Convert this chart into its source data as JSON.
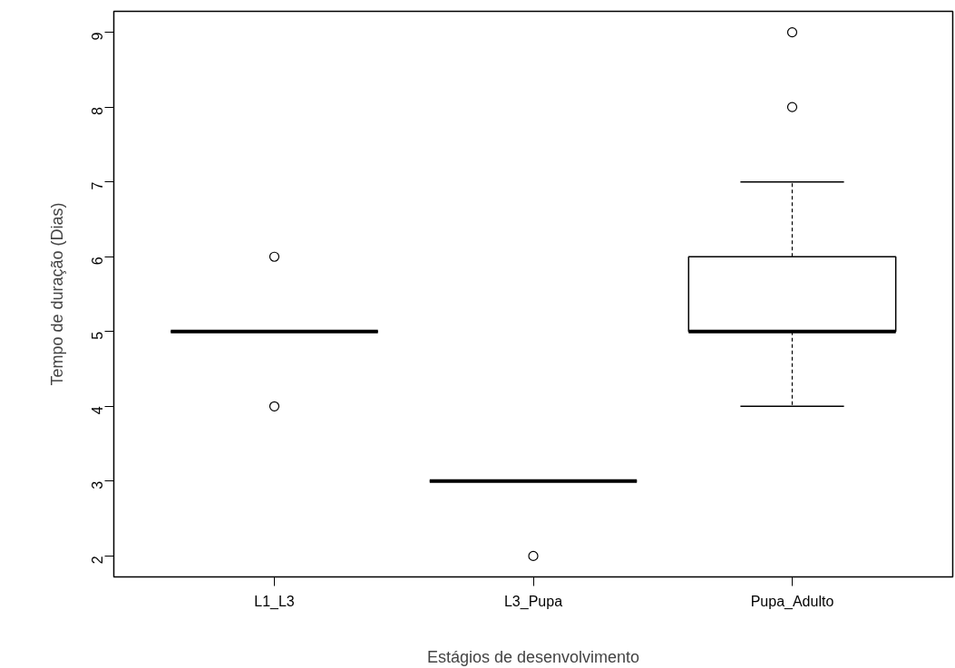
{
  "chart_data": {
    "type": "box",
    "xlabel": "Estágios de desenvolvimento",
    "ylabel": "Tempo de duração (Dias)",
    "categories": [
      "L1_L3",
      "L3_Pupa",
      "Pupa_Adulto"
    ],
    "boxes": [
      {
        "low": 5,
        "q1": 5,
        "median": 5,
        "q3": 5,
        "high": 5,
        "outliers": [
          4,
          6
        ]
      },
      {
        "low": 3,
        "q1": 3,
        "median": 3,
        "q3": 3,
        "high": 3,
        "outliers": [
          2
        ]
      },
      {
        "low": 4,
        "q1": 5,
        "median": 5,
        "q3": 6,
        "high": 7,
        "outliers": [
          8,
          9
        ]
      }
    ],
    "ylim": [
      1.72,
      9.28
    ],
    "yticks": [
      2,
      3,
      4,
      5,
      6,
      7,
      8,
      9
    ],
    "grid": false,
    "marker": "circle"
  }
}
